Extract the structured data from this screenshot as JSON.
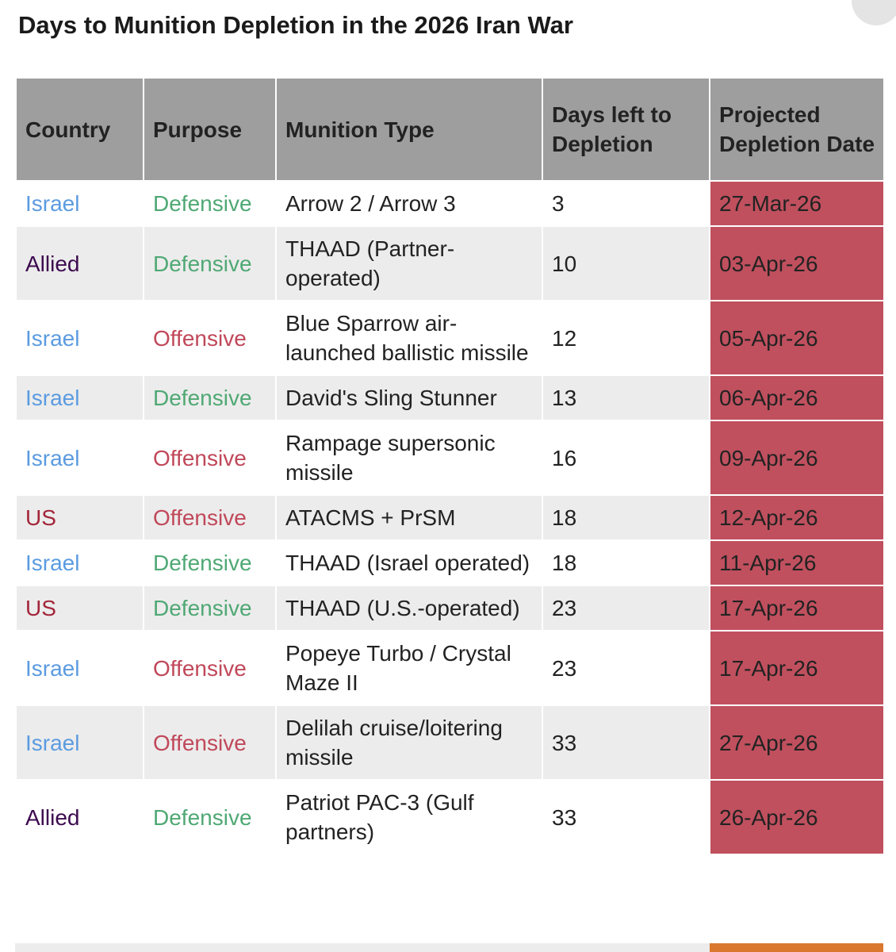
{
  "title": "Days to Munition Depletion in the 2026 Iran War",
  "table": {
    "headers": [
      "Country",
      "Purpose",
      "Munition Type",
      "Days left to Depletion",
      "Projected Depletion Date"
    ],
    "rows": [
      [
        "Israel",
        "Defensive",
        "Arrow 2 / Arrow 3",
        "3",
        "27-Mar-26"
      ],
      [
        "Allied",
        "Defensive",
        "THAAD (Partner-operated)",
        "10",
        "03-Apr-26"
      ],
      [
        "Israel",
        "Offensive",
        "Blue Sparrow air-launched ballistic missile",
        "12",
        "05-Apr-26"
      ],
      [
        "Israel",
        "Defensive",
        "David's Sling Stunner",
        "13",
        "06-Apr-26"
      ],
      [
        "Israel",
        "Offensive",
        "Rampage supersonic missile",
        "16",
        "09-Apr-26"
      ],
      [
        "US",
        "Offensive",
        "ATACMS + PrSM",
        "18",
        "12-Apr-26"
      ],
      [
        "Israel",
        "Defensive",
        "THAAD (Israel operated)",
        "18",
        "11-Apr-26"
      ],
      [
        "US",
        "Defensive",
        "THAAD (U.S.-operated)",
        "23",
        "17-Apr-26"
      ],
      [
        "Israel",
        "Offensive",
        "Popeye Turbo / Crystal Maze II",
        "23",
        "17-Apr-26"
      ],
      [
        "Israel",
        "Offensive",
        "Delilah cruise/loitering missile",
        "33",
        "27-Apr-26"
      ],
      [
        "Allied",
        "Defensive",
        "Patriot PAC-3 (Gulf partners)",
        "33",
        "26-Apr-26"
      ]
    ],
    "text_colors": {
      "Israel": "#5b9be0",
      "Allied": "#3d0a4f",
      "US": "#a3263a",
      "Defensive": "#4fa874",
      "Offensive": "#c0485a"
    },
    "date_color": "#c0505e"
  }
}
